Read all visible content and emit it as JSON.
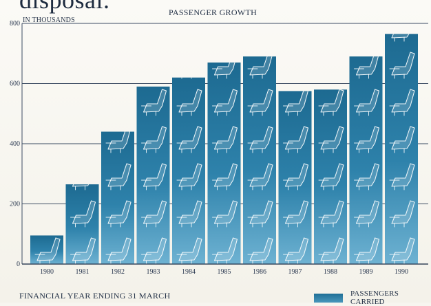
{
  "header_fragment": "disposal.",
  "chart_data": {
    "type": "bar",
    "title": "PASSENGER GROWTH",
    "ylabel": "IN THOUSANDS",
    "xlabel": "FINANCIAL YEAR ENDING 31 MARCH",
    "categories": [
      "1980",
      "1981",
      "1982",
      "1983",
      "1984",
      "1985",
      "1986",
      "1987",
      "1988",
      "1989",
      "1990"
    ],
    "series": [
      {
        "name": "PASSENGERS CARRIED",
        "values": [
          95,
          265,
          440,
          590,
          620,
          670,
          690,
          575,
          580,
          690,
          765
        ]
      }
    ],
    "ylim": [
      0,
      800
    ],
    "yticks": [
      0,
      200,
      400,
      600,
      800
    ],
    "grid": true,
    "legend_position": "bottom-right",
    "bar_color": "#2a7ca4",
    "bar_color_light": "#5ea6c8"
  }
}
